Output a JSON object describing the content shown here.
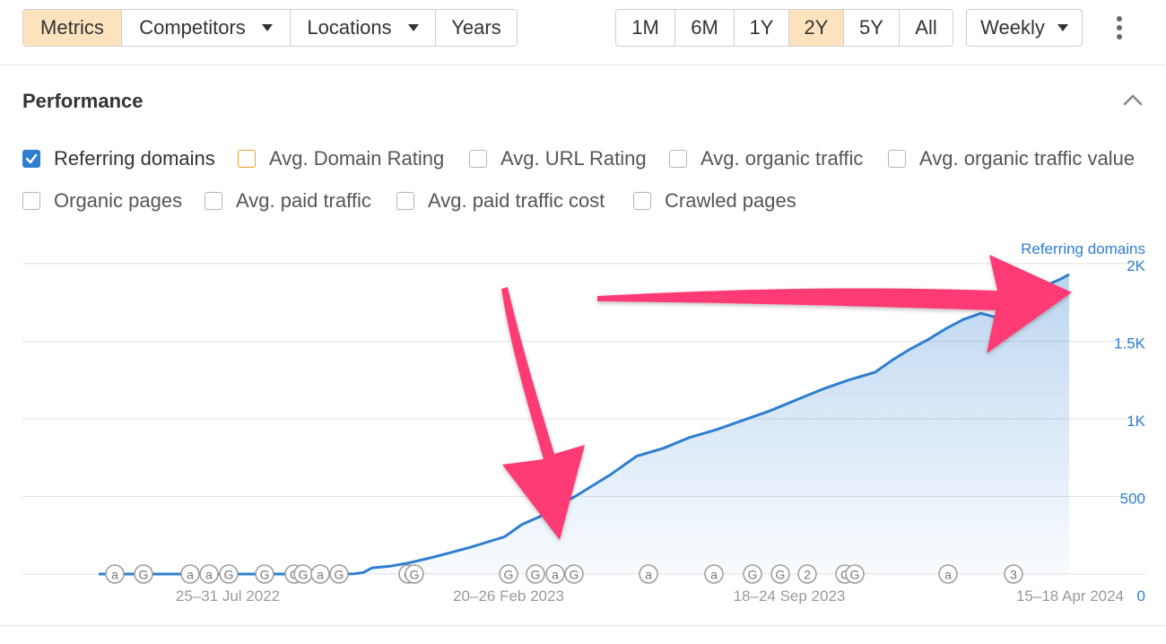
{
  "toolbar": {
    "main_tabs": [
      {
        "label": "Metrics",
        "active": true,
        "dropdown": false
      },
      {
        "label": "Competitors",
        "active": false,
        "dropdown": true
      },
      {
        "label": "Locations",
        "active": false,
        "dropdown": true
      },
      {
        "label": "Years",
        "active": false,
        "dropdown": false
      }
    ],
    "ranges": [
      {
        "label": "1M",
        "active": false
      },
      {
        "label": "6M",
        "active": false
      },
      {
        "label": "1Y",
        "active": false
      },
      {
        "label": "2Y",
        "active": true
      },
      {
        "label": "5Y",
        "active": false
      },
      {
        "label": "All",
        "active": false
      }
    ],
    "interval": "Weekly",
    "more_icon": "kebab-menu-icon"
  },
  "section": {
    "title": "Performance"
  },
  "metrics": [
    {
      "label": "Referring domains",
      "checked": true
    },
    {
      "label": "Avg. Domain Rating",
      "checked": false,
      "accent": "#f0a030"
    },
    {
      "label": "Avg. URL Rating",
      "checked": false
    },
    {
      "label": "Avg. organic traffic",
      "checked": false
    },
    {
      "label": "Avg. organic traffic value",
      "checked": false
    },
    {
      "label": "Organic pages",
      "checked": false
    },
    {
      "label": "Avg. paid traffic",
      "checked": false
    },
    {
      "label": "Avg. paid traffic cost",
      "checked": false
    },
    {
      "label": "Crawled pages",
      "checked": false
    }
  ],
  "colors": {
    "accent": "#2f7fd0",
    "active_tab": "#fde3bd",
    "arrow": "#ff3b74"
  },
  "chart_data": {
    "type": "area",
    "ylabel": "Referring domains",
    "ylim": [
      0,
      2000
    ],
    "yticks": [
      {
        "value": 500,
        "label": "500"
      },
      {
        "value": 1000,
        "label": "1K"
      },
      {
        "value": 1500,
        "label": "1.5K"
      },
      {
        "value": 2000,
        "label": "2K"
      }
    ],
    "zero_label": "0",
    "x_labels": [
      "25–31 Jul 2022",
      "20–26 Feb 2023",
      "18–24 Sep 2023",
      "15–18 Apr 2024"
    ],
    "series": [
      {
        "name": "Referring domains",
        "points": [
          [
            "2022-06-06",
            0
          ],
          [
            "2022-08-15",
            0
          ],
          [
            "2022-10-24",
            0
          ],
          [
            "2022-12-05",
            0
          ],
          [
            "2022-12-26",
            2
          ],
          [
            "2023-01-02",
            10
          ],
          [
            "2023-01-09",
            40
          ],
          [
            "2023-01-23",
            50
          ],
          [
            "2023-02-06",
            70
          ],
          [
            "2023-02-27",
            110
          ],
          [
            "2023-03-13",
            140
          ],
          [
            "2023-03-27",
            170
          ],
          [
            "2023-04-10",
            205
          ],
          [
            "2023-04-24",
            240
          ],
          [
            "2023-05-08",
            320
          ],
          [
            "2023-05-22",
            370
          ],
          [
            "2023-06-05",
            440
          ],
          [
            "2023-06-19",
            500
          ],
          [
            "2023-07-03",
            570
          ],
          [
            "2023-07-17",
            640
          ],
          [
            "2023-07-31",
            720
          ],
          [
            "2023-08-07",
            760
          ],
          [
            "2023-08-28",
            810
          ],
          [
            "2023-09-18",
            880
          ],
          [
            "2023-10-09",
            930
          ],
          [
            "2023-10-30",
            990
          ],
          [
            "2023-11-20",
            1050
          ],
          [
            "2023-12-11",
            1120
          ],
          [
            "2024-01-01",
            1190
          ],
          [
            "2024-01-22",
            1250
          ],
          [
            "2024-02-12",
            1300
          ],
          [
            "2024-02-26",
            1380
          ],
          [
            "2024-03-11",
            1450
          ],
          [
            "2024-03-25",
            1510
          ],
          [
            "2024-04-08",
            1580
          ],
          [
            "2024-04-22",
            1640
          ],
          [
            "2024-05-06",
            1680
          ],
          [
            "2024-05-20",
            1650
          ],
          [
            "2024-05-27",
            1710
          ],
          [
            "2024-06-10",
            1780
          ],
          [
            "2024-06-24",
            1850
          ],
          [
            "2024-07-08",
            1900
          ],
          [
            "2024-07-15",
            1930
          ]
        ]
      }
    ],
    "annotations": [
      "a",
      "G",
      "a",
      "a",
      "G",
      "G",
      "C",
      "G",
      "a",
      "G",
      "C",
      "G",
      "G",
      "G",
      "a",
      "G",
      "a",
      "a",
      "G",
      "G",
      "2",
      "C",
      "G",
      "a",
      "3"
    ],
    "grid": true,
    "x_range": [
      "2022-06-06",
      "2024-07-15"
    ]
  }
}
